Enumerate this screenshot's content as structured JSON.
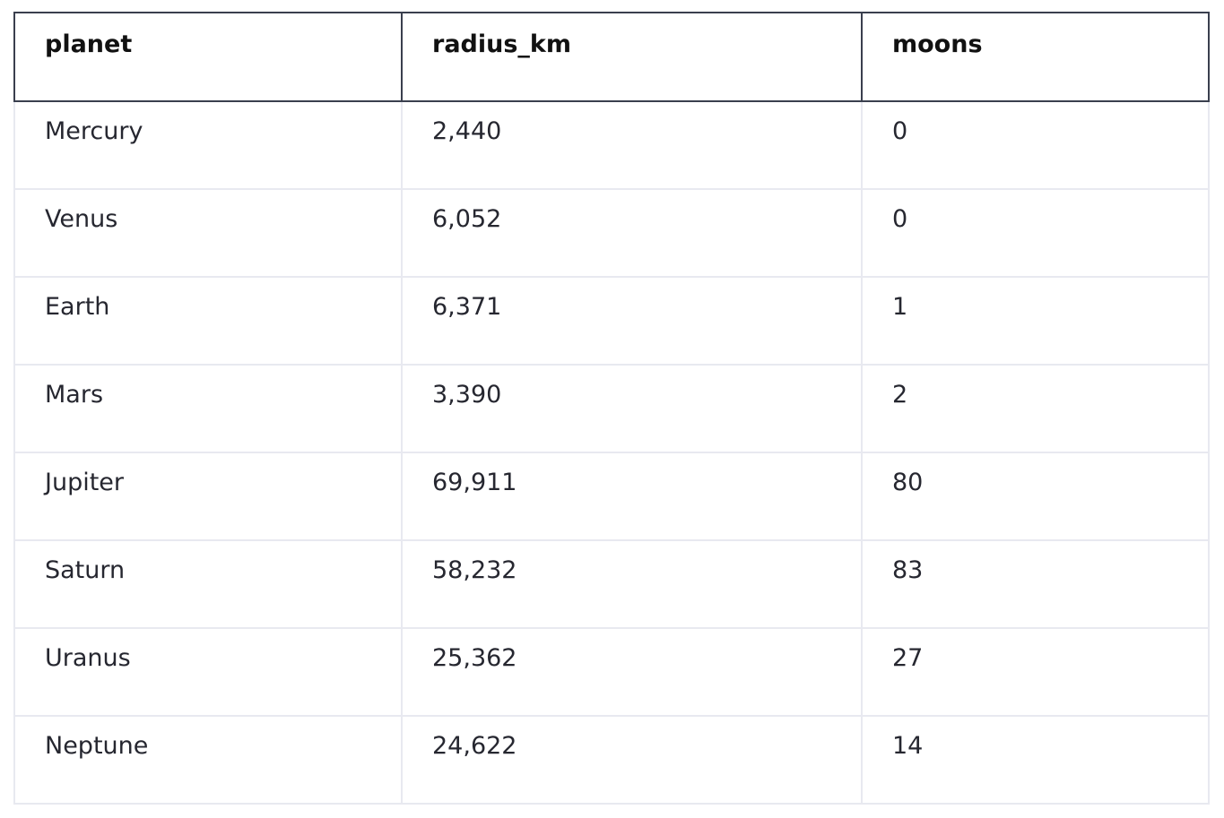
{
  "chart_data": {
    "type": "table",
    "columns": [
      "planet",
      "radius_km",
      "moons"
    ],
    "rows": [
      [
        "Mercury",
        "2,440",
        "0"
      ],
      [
        "Venus",
        "6,052",
        "0"
      ],
      [
        "Earth",
        "6,371",
        "1"
      ],
      [
        "Mars",
        "3,390",
        "2"
      ],
      [
        "Jupiter",
        "69,911",
        "80"
      ],
      [
        "Saturn",
        "58,232",
        "83"
      ],
      [
        "Uranus",
        "25,362",
        "27"
      ],
      [
        "Neptune",
        "24,622",
        "14"
      ]
    ]
  },
  "colors": {
    "header_border": "#3a3f4e",
    "cell_border": "#e8e9f0",
    "text": "#262730"
  }
}
